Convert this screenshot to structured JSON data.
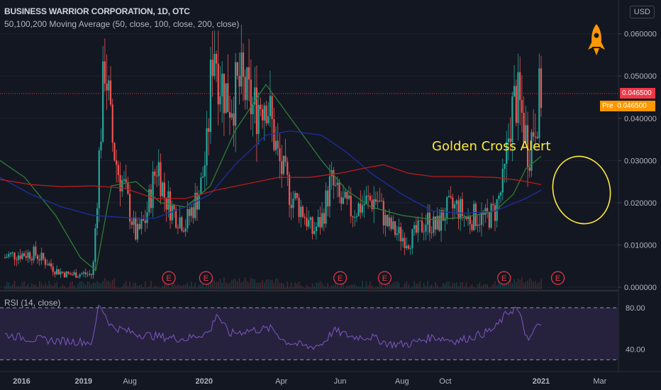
{
  "header": {
    "title": "BUSINESS WARRIOR CORPORATION, 1D, OTC",
    "ma_legend": "50,100,200 Moving Average (50, close, 100, close, 200, close)",
    "rsi_legend": "RSI (14, close)"
  },
  "currency": "USD",
  "price_tags": {
    "last": "0.046500",
    "pre_label": "Pre",
    "pre": "0.046500"
  },
  "annotation": "Golden Cross Alert",
  "colors": {
    "background": "#131722",
    "up": "#26a69a",
    "down": "#ef5350",
    "ma50": "#2e7d32",
    "ma100": "#1e2fa0",
    "ma200": "#b71c1c",
    "rsi": "#7e57c2",
    "annotation": "#ffeb3b",
    "rocket": "#ff9800"
  },
  "icons": [
    "rocket-icon",
    "earnings-marker-icon"
  ],
  "chart_data": {
    "type": "candlestick",
    "title": "BUSINESS WARRIOR CORPORATION, 1D, OTC",
    "x_ticks": [
      "2016",
      "2019",
      "Aug",
      "2020",
      "Apr",
      "Jun",
      "Aug",
      "Oct",
      "2021",
      "Mar"
    ],
    "y_ticks": [
      "0.060000",
      "0.050000",
      "0.040000",
      "0.030000",
      "0.020000",
      "0.010000",
      "0.000000"
    ],
    "ylim": [
      -0.0005,
      0.068
    ],
    "earnings_markers": [
      "E",
      "E",
      "E",
      "E",
      "E",
      "E"
    ],
    "close_path": [
      [
        0.008,
        0.007
      ],
      [
        0.012,
        0.0075
      ],
      [
        0.03,
        0.0078
      ],
      [
        0.055,
        0.008
      ],
      [
        0.075,
        0.006
      ],
      [
        0.09,
        0.004
      ],
      [
        0.11,
        0.003
      ],
      [
        0.135,
        0.0032
      ],
      [
        0.15,
        0.003
      ],
      [
        0.16,
        0.03
      ],
      [
        0.17,
        0.055
      ],
      [
        0.18,
        0.036
      ],
      [
        0.19,
        0.028
      ],
      [
        0.2,
        0.024
      ],
      [
        0.21,
        0.018
      ],
      [
        0.22,
        0.012
      ],
      [
        0.235,
        0.016
      ],
      [
        0.255,
        0.03
      ],
      [
        0.265,
        0.022
      ],
      [
        0.28,
        0.018
      ],
      [
        0.3,
        0.015
      ],
      [
        0.315,
        0.02
      ],
      [
        0.325,
        0.024
      ],
      [
        0.335,
        0.033
      ],
      [
        0.345,
        0.06
      ],
      [
        0.355,
        0.05
      ],
      [
        0.37,
        0.044
      ],
      [
        0.39,
        0.048
      ],
      [
        0.41,
        0.042
      ],
      [
        0.43,
        0.046
      ],
      [
        0.45,
        0.03
      ],
      [
        0.47,
        0.022
      ],
      [
        0.49,
        0.018
      ],
      [
        0.505,
        0.013
      ],
      [
        0.52,
        0.016
      ],
      [
        0.535,
        0.025
      ],
      [
        0.55,
        0.02
      ],
      [
        0.57,
        0.018
      ],
      [
        0.59,
        0.02
      ],
      [
        0.61,
        0.021
      ],
      [
        0.625,
        0.015
      ],
      [
        0.64,
        0.013
      ],
      [
        0.66,
        0.011
      ],
      [
        0.675,
        0.013
      ],
      [
        0.69,
        0.016
      ],
      [
        0.705,
        0.014
      ],
      [
        0.72,
        0.018
      ],
      [
        0.74,
        0.019
      ],
      [
        0.755,
        0.016
      ],
      [
        0.77,
        0.017
      ],
      [
        0.785,
        0.016
      ],
      [
        0.8,
        0.018
      ],
      [
        0.815,
        0.025
      ],
      [
        0.825,
        0.04
      ],
      [
        0.835,
        0.045
      ],
      [
        0.845,
        0.04
      ],
      [
        0.855,
        0.032
      ],
      [
        0.865,
        0.04
      ],
      [
        0.875,
        0.0465
      ]
    ],
    "series": [
      {
        "name": "MA 50",
        "color": "#2e7d32",
        "points": [
          [
            0.0,
            0.03
          ],
          [
            0.04,
            0.026
          ],
          [
            0.09,
            0.017
          ],
          [
            0.13,
            0.007
          ],
          [
            0.155,
            0.004
          ],
          [
            0.18,
            0.024
          ],
          [
            0.22,
            0.025
          ],
          [
            0.26,
            0.02
          ],
          [
            0.3,
            0.019
          ],
          [
            0.34,
            0.024
          ],
          [
            0.38,
            0.037
          ],
          [
            0.43,
            0.048
          ],
          [
            0.47,
            0.04
          ],
          [
            0.52,
            0.03
          ],
          [
            0.56,
            0.023
          ],
          [
            0.6,
            0.019
          ],
          [
            0.65,
            0.017
          ],
          [
            0.7,
            0.016
          ],
          [
            0.75,
            0.0165
          ],
          [
            0.8,
            0.018
          ],
          [
            0.83,
            0.022
          ],
          [
            0.85,
            0.028
          ],
          [
            0.875,
            0.031
          ]
        ]
      },
      {
        "name": "MA 100",
        "color": "#1e2fa0",
        "points": [
          [
            0.0,
            0.026
          ],
          [
            0.05,
            0.022
          ],
          [
            0.1,
            0.019
          ],
          [
            0.15,
            0.017
          ],
          [
            0.2,
            0.0165
          ],
          [
            0.25,
            0.0163
          ],
          [
            0.3,
            0.019
          ],
          [
            0.34,
            0.022
          ],
          [
            0.38,
            0.029
          ],
          [
            0.43,
            0.036
          ],
          [
            0.47,
            0.037
          ],
          [
            0.52,
            0.036
          ],
          [
            0.56,
            0.032
          ],
          [
            0.6,
            0.027
          ],
          [
            0.65,
            0.022
          ],
          [
            0.7,
            0.018
          ],
          [
            0.75,
            0.0175
          ],
          [
            0.8,
            0.018
          ],
          [
            0.85,
            0.021
          ],
          [
            0.875,
            0.023
          ]
        ]
      },
      {
        "name": "MA 200",
        "color": "#b71c1c",
        "points": [
          [
            0.0,
            0.0255
          ],
          [
            0.05,
            0.0243
          ],
          [
            0.1,
            0.0238
          ],
          [
            0.15,
            0.024
          ],
          [
            0.2,
            0.0235
          ],
          [
            0.25,
            0.021
          ],
          [
            0.3,
            0.021
          ],
          [
            0.35,
            0.023
          ],
          [
            0.4,
            0.0245
          ],
          [
            0.45,
            0.026
          ],
          [
            0.5,
            0.026
          ],
          [
            0.55,
            0.027
          ],
          [
            0.6,
            0.0285
          ],
          [
            0.62,
            0.029
          ],
          [
            0.66,
            0.027
          ],
          [
            0.7,
            0.0262
          ],
          [
            0.75,
            0.0262
          ],
          [
            0.8,
            0.026
          ],
          [
            0.84,
            0.0253
          ],
          [
            0.875,
            0.0243
          ]
        ]
      }
    ],
    "rsi": {
      "label": "RSI (14, close)",
      "bands": [
        80,
        30
      ],
      "y_ticks": [
        "80.00",
        "40.00"
      ],
      "ylim": [
        20,
        95
      ],
      "points": [
        [
          0.0,
          55
        ],
        [
          0.05,
          50
        ],
        [
          0.1,
          48
        ],
        [
          0.15,
          47
        ],
        [
          0.16,
          85
        ],
        [
          0.18,
          62
        ],
        [
          0.22,
          55
        ],
        [
          0.26,
          52
        ],
        [
          0.3,
          50
        ],
        [
          0.34,
          57
        ],
        [
          0.35,
          75
        ],
        [
          0.37,
          55
        ],
        [
          0.4,
          58
        ],
        [
          0.44,
          60
        ],
        [
          0.46,
          48
        ],
        [
          0.5,
          42
        ],
        [
          0.52,
          45
        ],
        [
          0.54,
          58
        ],
        [
          0.57,
          52
        ],
        [
          0.6,
          52
        ],
        [
          0.63,
          45
        ],
        [
          0.66,
          45
        ],
        [
          0.7,
          52
        ],
        [
          0.74,
          48
        ],
        [
          0.78,
          55
        ],
        [
          0.8,
          60
        ],
        [
          0.82,
          75
        ],
        [
          0.835,
          80
        ],
        [
          0.845,
          65
        ],
        [
          0.855,
          45
        ],
        [
          0.865,
          62
        ],
        [
          0.875,
          63
        ]
      ]
    }
  }
}
